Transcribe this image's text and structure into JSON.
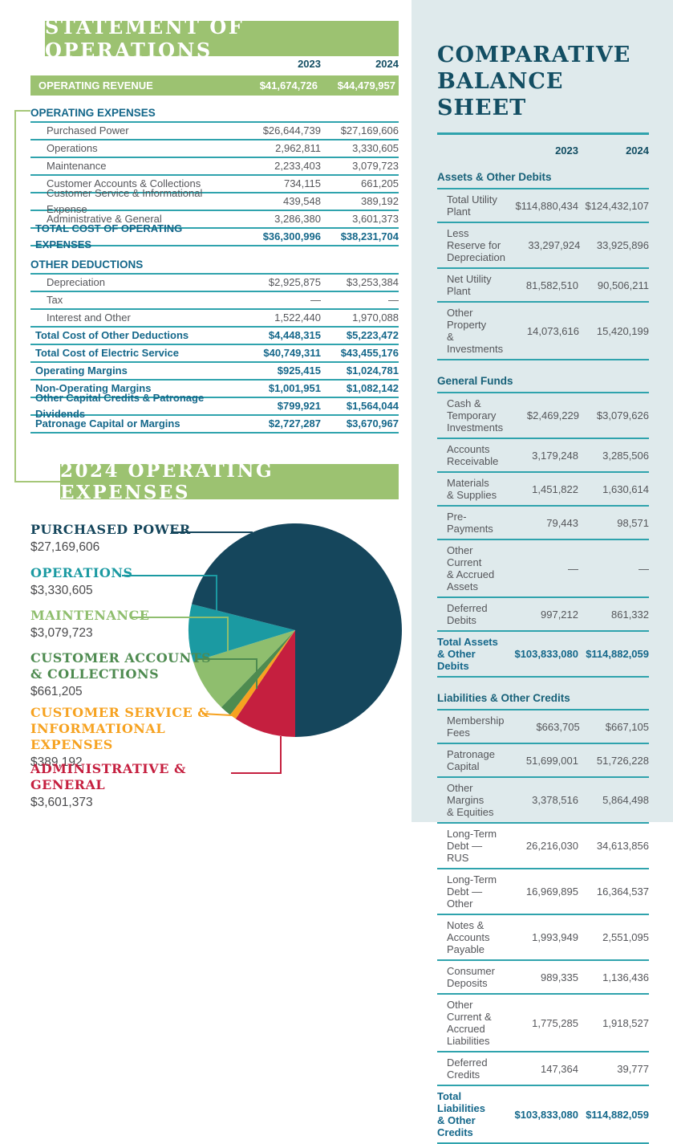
{
  "colors": {
    "banner_green": "#9cc271",
    "bracket_green": "#a6c779",
    "rule_teal": "#2fa3ad",
    "heading_teal": "#14678a",
    "dark_teal_text": "#134e63",
    "body_gray": "#55565a",
    "panel_bg": "#dfeaec"
  },
  "statement": {
    "title": "STATEMENT OF OPERATIONS",
    "col_2023": "2023",
    "col_2024": "2024",
    "revenue_row": {
      "label": "OPERATING REVENUE",
      "y2023": "$41,674,726",
      "y2024": "$44,479,957"
    },
    "operating_expenses": {
      "heading": "OPERATING EXPENSES",
      "rows": [
        {
          "label": "Purchased Power",
          "y2023": "$26,644,739",
          "y2024": "$27,169,606"
        },
        {
          "label": "Operations",
          "y2023": "2,962,811",
          "y2024": "3,330,605"
        },
        {
          "label": "Maintenance",
          "y2023": "2,233,403",
          "y2024": "3,079,723"
        },
        {
          "label": "Customer Accounts & Collections",
          "y2023": "734,115",
          "y2024": "661,205"
        },
        {
          "label": "Customer Service & Informational Expense",
          "y2023": "439,548",
          "y2024": "389,192"
        },
        {
          "label": "Administrative & General",
          "y2023": "3,286,380",
          "y2024": "3,601,373"
        },
        {
          "label": "TOTAL COST OF OPERATING EXPENSES",
          "y2023": "$36,300,996",
          "y2024": "$38,231,704",
          "style": "total"
        }
      ]
    },
    "other_deductions": {
      "heading": "OTHER DEDUCTIONS",
      "rows": [
        {
          "label": "Depreciation",
          "y2023": "$2,925,875",
          "y2024": "$3,253,384"
        },
        {
          "label": "Tax",
          "y2023": "—",
          "y2024": "—"
        },
        {
          "label": "Interest and Other",
          "y2023": "1,522,440",
          "y2024": "1,970,088"
        },
        {
          "label": "Total Cost of Other Deductions",
          "y2023": "$4,448,315",
          "y2024": "$5,223,472",
          "style": "total"
        },
        {
          "label": "Total Cost of Electric Service",
          "y2023": "$40,749,311",
          "y2024": "$43,455,176",
          "style": "total"
        },
        {
          "label": "Operating Margins",
          "y2023": "$925,415",
          "y2024": "$1,024,781",
          "style": "total"
        },
        {
          "label": "Non-Operating Margins",
          "y2023": "$1,001,951",
          "y2024": "$1,082,142",
          "style": "total"
        },
        {
          "label": "Other Capital Credits & Patronage Dividends",
          "y2023": "$799,921",
          "y2024": "$1,564,044",
          "style": "total"
        },
        {
          "label": "Patronage Capital or Margins",
          "y2023": "$2,727,287",
          "y2024": "$3,670,967",
          "style": "total"
        }
      ]
    }
  },
  "chart_data": {
    "type": "pie",
    "title": "2024 OPERATING EXPENSES",
    "total_value": 38231704,
    "slices": [
      {
        "label": "PURCHASED POWER",
        "value": 27169606,
        "display": "$27,169,606",
        "color": "#15465c"
      },
      {
        "label": "OPERATIONS",
        "value": 3330605,
        "display": "$3,330,605",
        "color": "#1b9aa2"
      },
      {
        "label": "MAINTENANCE",
        "value": 3079723,
        "display": "$3,079,723",
        "color": "#8fbe6e"
      },
      {
        "label": "CUSTOMER ACCOUNTS\n& COLLECTIONS",
        "value": 661205,
        "display": "$661,205",
        "color": "#4e8b50"
      },
      {
        "label": "CUSTOMER SERVICE &\nINFORMATIONAL EXPENSES",
        "value": 389192,
        "display": "$389,192",
        "color": "#f6a220"
      },
      {
        "label": "ADMINISTRATIVE & GENERAL",
        "value": 3601373,
        "display": "$3,601,373",
        "color": "#c51f3f"
      }
    ],
    "layout": {
      "start_angle": "6-o'clock",
      "direction": "clockwise, Administrative & General first to the left of bottom",
      "legend_position": "left"
    }
  },
  "balance_sheet": {
    "title_line1": "COMPARATIVE",
    "title_line2": "BALANCE SHEET",
    "col_2023": "2023",
    "col_2024": "2024",
    "sections": [
      {
        "heading": "Assets & Other Debits",
        "rows": [
          {
            "label": "Total Utility Plant",
            "y2023": "$114,880,434",
            "y2024": "$124,432,107"
          },
          {
            "label": "Less Reserve for\nDepreciation",
            "y2023": "33,297,924",
            "y2024": "33,925,896"
          },
          {
            "label": "Net Utility Plant",
            "y2023": "81,582,510",
            "y2024": "90,506,211"
          },
          {
            "label": "Other Property\n& Investments",
            "y2023": "14,073,616",
            "y2024": "15,420,199"
          }
        ]
      },
      {
        "heading": "General Funds",
        "rows": [
          {
            "label": "Cash & Temporary\nInvestments",
            "y2023": "$2,469,229",
            "y2024": "$3,079,626"
          },
          {
            "label": "Accounts\nReceivable",
            "y2023": "3,179,248",
            "y2024": "3,285,506"
          },
          {
            "label": "Materials\n& Supplies",
            "y2023": "1,451,822",
            "y2024": "1,630,614"
          },
          {
            "label": "Pre-Payments",
            "y2023": "79,443",
            "y2024": "98,571"
          },
          {
            "label": "Other Current\n& Accrued Assets",
            "y2023": "—",
            "y2024": "—"
          },
          {
            "label": "Deferred Debits",
            "y2023": "997,212",
            "y2024": "861,332"
          },
          {
            "label": "Total Assets\n& Other Debits",
            "y2023": "$103,833,080",
            "y2024": "$114,882,059",
            "style": "total"
          }
        ]
      },
      {
        "heading": "Liabilities & Other Credits",
        "rows": [
          {
            "label": "Membership Fees",
            "y2023": "$663,705",
            "y2024": "$667,105"
          },
          {
            "label": "Patronage Capital",
            "y2023": "51,699,001",
            "y2024": "51,726,228"
          },
          {
            "label": "Other Margins\n& Equities",
            "y2023": "3,378,516",
            "y2024": "5,864,498"
          },
          {
            "label": "Long-Term\nDebt — RUS",
            "y2023": "26,216,030",
            "y2024": "34,613,856"
          },
          {
            "label": "Long-Term\nDebt — Other",
            "y2023": "16,969,895",
            "y2024": "16,364,537"
          },
          {
            "label": "Notes & Accounts\nPayable",
            "y2023": "1,993,949",
            "y2024": "2,551,095"
          },
          {
            "label": "Consumer Deposits",
            "y2023": "989,335",
            "y2024": "1,136,436"
          },
          {
            "label": "Other Current &\nAccrued Liabilities",
            "y2023": "1,775,285",
            "y2024": "1,918,527"
          },
          {
            "label": "Deferred Credits",
            "y2023": "147,364",
            "y2024": "39,777"
          },
          {
            "label": "Total Liabilities\n& Other Credits",
            "y2023": "$103,833,080",
            "y2024": "$114,882,059",
            "style": "total"
          }
        ]
      }
    ]
  }
}
